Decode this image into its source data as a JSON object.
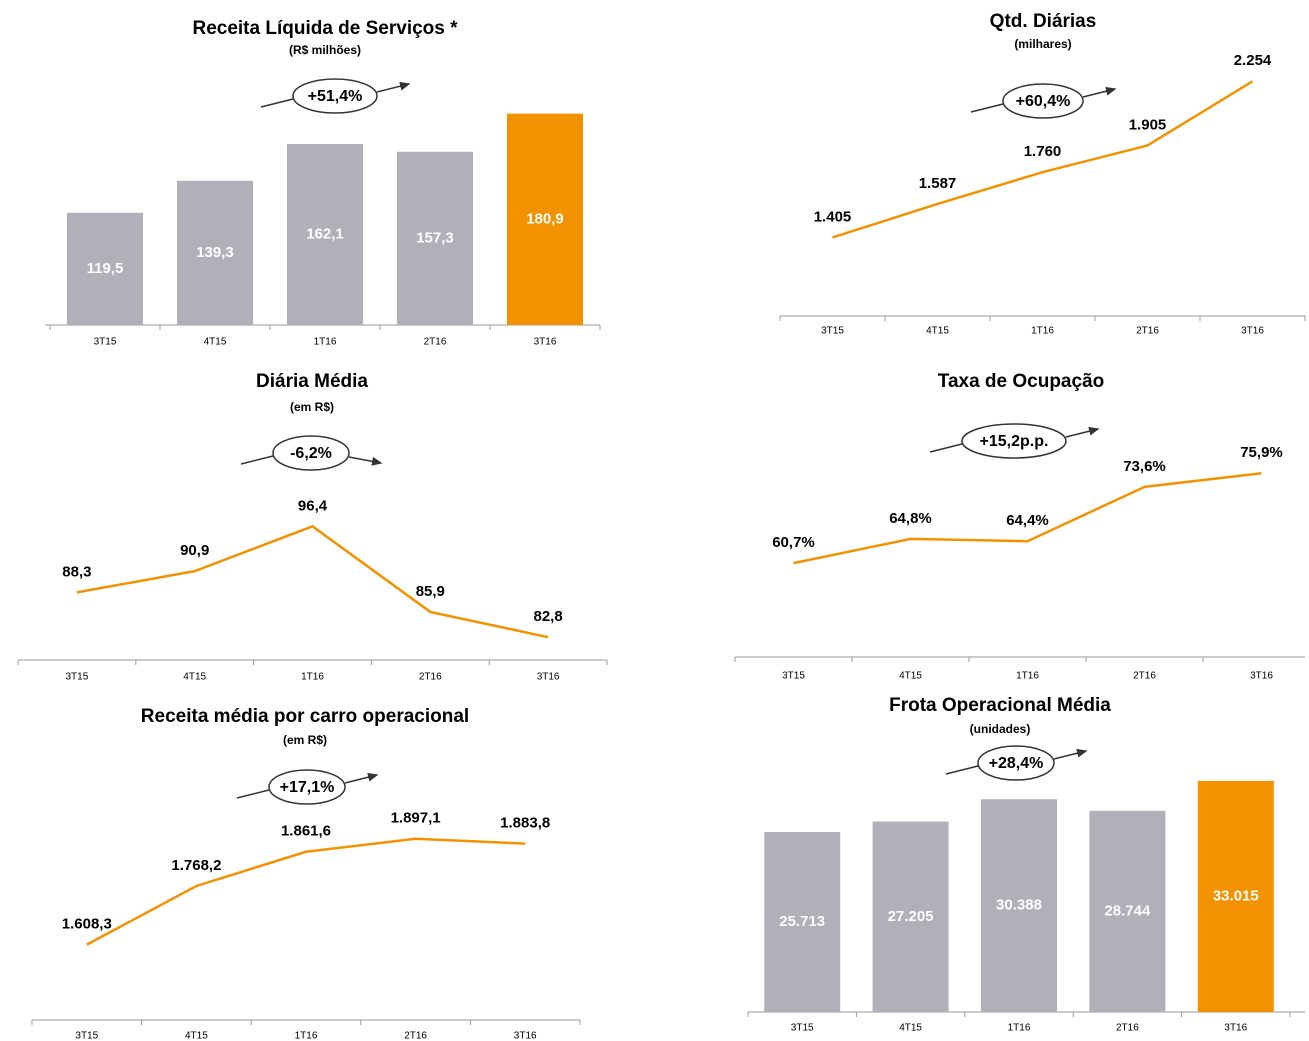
{
  "chart_data": [
    {
      "type": "bar",
      "title": "Receita Líquida de Serviços *",
      "subtitle": "(R$ milhões)",
      "annotation": "+51,4%",
      "categories": [
        "3T15",
        "4T15",
        "1T16",
        "2T16",
        "3T16"
      ],
      "values": [
        119.5,
        139.3,
        162.1,
        157.3,
        180.9
      ],
      "value_labels": [
        "119,5",
        "139,3",
        "162,1",
        "157,3",
        "180,9"
      ],
      "colors": [
        "#b1b0b9",
        "#b1b0b9",
        "#b1b0b9",
        "#b1b0b9",
        "#f39200"
      ],
      "ylim": [
        50,
        185
      ]
    },
    {
      "type": "line",
      "title": "Qtd. Diárias",
      "subtitle": "(milhares)",
      "annotation": "+60,4%",
      "categories": [
        "3T15",
        "4T15",
        "1T16",
        "2T16",
        "3T16"
      ],
      "values": [
        1405,
        1587,
        1760,
        1905,
        2254
      ],
      "value_labels": [
        "1.405",
        "1.587",
        "1.760",
        "1.905",
        "2.254"
      ],
      "color": "#f39200",
      "ylim": [
        1000,
        2500
      ]
    },
    {
      "type": "line",
      "title": "Diária Média",
      "subtitle": "(em R$)",
      "annotation": "-6,2%",
      "categories": [
        "3T15",
        "4T15",
        "1T16",
        "2T16",
        "3T16"
      ],
      "values": [
        88.3,
        90.9,
        96.4,
        85.9,
        82.8
      ],
      "value_labels": [
        "88,3",
        "90,9",
        "96,4",
        "85,9",
        "82,8"
      ],
      "color": "#f39200",
      "ylim": [
        80,
        100
      ]
    },
    {
      "type": "line",
      "title": "Taxa de Ocupação",
      "annotation": "+15,2p.p.",
      "categories": [
        "3T15",
        "4T15",
        "1T16",
        "2T16",
        "3T16"
      ],
      "values": [
        60.7,
        64.8,
        64.4,
        73.6,
        75.9
      ],
      "value_labels": [
        "60,7%",
        "64,8%",
        "64,4%",
        "73,6%",
        "75,9%"
      ],
      "color": "#f39200",
      "ylim": [
        45,
        80
      ]
    },
    {
      "type": "line",
      "title": "Receita média por carro operacional",
      "subtitle": "(em R$)",
      "annotation": "+17,1%",
      "categories": [
        "3T15",
        "4T15",
        "1T16",
        "2T16",
        "3T16"
      ],
      "values": [
        1608.3,
        1768.2,
        1861.6,
        1897.1,
        1883.8
      ],
      "value_labels": [
        "1.608,3",
        "1.768,2",
        "1.861,6",
        "1.897,1",
        "1.883,8"
      ],
      "color": "#f39200",
      "ylim": [
        1400,
        2000
      ]
    },
    {
      "type": "bar",
      "title": "Frota Operacional Média",
      "subtitle": "(unidades)",
      "annotation": "+28,4%",
      "categories": [
        "3T15",
        "4T15",
        "1T16",
        "2T16",
        "3T16"
      ],
      "values": [
        25713,
        27205,
        30388,
        28744,
        33015
      ],
      "value_labels": [
        "25.713",
        "27.205",
        "30.388",
        "28.744",
        "33.015"
      ],
      "colors": [
        "#b1b0b9",
        "#b1b0b9",
        "#b1b0b9",
        "#b1b0b9",
        "#f39200"
      ],
      "ylim": [
        0,
        35000
      ]
    }
  ]
}
